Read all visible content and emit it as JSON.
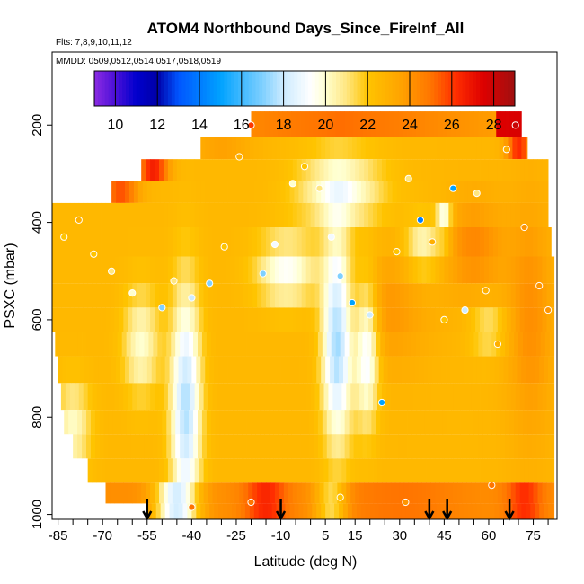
{
  "chart_data": {
    "type": "heatmap",
    "title": "ATOM4 Northbound Days_Since_FireInf_All",
    "flights_note": "Flts: 7,8,9,10,11,12",
    "dates_note": "MMDD: 0509,0512,0514,0517,0518,0519",
    "xlabel": "Latitude (deg N)",
    "ylabel": "PSXC (mbar)",
    "xlim": [
      -87,
      83
    ],
    "ylim": [
      1010,
      50
    ],
    "y_reversed": true,
    "x_ticks": [
      -85,
      -70,
      -55,
      -40,
      -25,
      -10,
      5,
      15,
      30,
      45,
      60,
      75
    ],
    "x_tick_labels": [
      "-85",
      "-70",
      "-55",
      "-40",
      "-25",
      "-10",
      "5",
      "15",
      "30",
      "45",
      "60",
      "75"
    ],
    "y_ticks": [
      200,
      400,
      600,
      800,
      1000
    ],
    "y_tick_labels": [
      "200",
      "400",
      "600",
      "800",
      "1000"
    ],
    "colorbar": {
      "min": 9,
      "max": 29,
      "ticks": [
        10,
        12,
        14,
        16,
        18,
        20,
        22,
        24,
        26,
        28
      ],
      "tick_labels": [
        "10",
        "12",
        "14",
        "16",
        "18",
        "20",
        "22",
        "24",
        "26",
        "28"
      ]
    },
    "colormap_stops": [
      [
        9,
        "#8a2be2"
      ],
      [
        10,
        "#4b10d8"
      ],
      [
        11,
        "#0000cd"
      ],
      [
        12,
        "#0000a8"
      ],
      [
        13,
        "#0055ff"
      ],
      [
        15,
        "#00a2ff"
      ],
      [
        17,
        "#7fd0ff"
      ],
      [
        18,
        "#cdebff"
      ],
      [
        19.3,
        "#ffffff"
      ],
      [
        20,
        "#ffffd0"
      ],
      [
        21,
        "#ffe680"
      ],
      [
        22,
        "#ffc400"
      ],
      [
        23.5,
        "#ffa500"
      ],
      [
        25,
        "#ff7500"
      ],
      [
        26.2,
        "#ff2d00"
      ],
      [
        27.5,
        "#dd0000"
      ],
      [
        29,
        "#a01010"
      ]
    ],
    "row_extents": [
      {
        "p": 200,
        "lat_min": -20,
        "lat_max": 71
      },
      {
        "p": 250,
        "lat_min": -37,
        "lat_max": 73
      },
      {
        "p": 290,
        "lat_min": -57,
        "lat_max": 80
      },
      {
        "p": 340,
        "lat_min": -67,
        "lat_max": 80
      },
      {
        "p": 380,
        "lat_min": -87,
        "lat_max": 80
      },
      {
        "p": 440,
        "lat_min": -87,
        "lat_max": 81
      },
      {
        "p": 500,
        "lat_min": -87,
        "lat_max": 82
      },
      {
        "p": 550,
        "lat_min": -87,
        "lat_max": 82
      },
      {
        "p": 600,
        "lat_min": -87,
        "lat_max": 82
      },
      {
        "p": 650,
        "lat_min": -86,
        "lat_max": 82
      },
      {
        "p": 700,
        "lat_min": -85,
        "lat_max": 82
      },
      {
        "p": 760,
        "lat_min": -84,
        "lat_max": 82
      },
      {
        "p": 810,
        "lat_min": -83,
        "lat_max": 82
      },
      {
        "p": 860,
        "lat_min": -80,
        "lat_max": 82
      },
      {
        "p": 910,
        "lat_min": -75,
        "lat_max": 82
      },
      {
        "p": 960,
        "lat_min": -69,
        "lat_max": 82
      },
      {
        "p": 995,
        "lat_min": -55,
        "lat_max": 82
      }
    ],
    "profile_arrows_lat": [
      -55,
      -10,
      40,
      46,
      67
    ],
    "sample_points": [
      {
        "lat": -83,
        "p": 430,
        "v": 22
      },
      {
        "lat": -78,
        "p": 395,
        "v": 23
      },
      {
        "lat": -73,
        "p": 465,
        "v": 22
      },
      {
        "lat": -67,
        "p": 500,
        "v": 21
      },
      {
        "lat": -60,
        "p": 545,
        "v": 20
      },
      {
        "lat": -50,
        "p": 575,
        "v": 17
      },
      {
        "lat": -46,
        "p": 520,
        "v": 21
      },
      {
        "lat": -40,
        "p": 555,
        "v": 18
      },
      {
        "lat": -34,
        "p": 525,
        "v": 17
      },
      {
        "lat": -29,
        "p": 450,
        "v": 22
      },
      {
        "lat": -24,
        "p": 265,
        "v": 23
      },
      {
        "lat": -20,
        "p": 200,
        "v": 26
      },
      {
        "lat": -16,
        "p": 505,
        "v": 17
      },
      {
        "lat": -12,
        "p": 445,
        "v": 19
      },
      {
        "lat": -6,
        "p": 320,
        "v": 20
      },
      {
        "lat": -2,
        "p": 285,
        "v": 22
      },
      {
        "lat": 3,
        "p": 330,
        "v": 21
      },
      {
        "lat": 7,
        "p": 430,
        "v": 19
      },
      {
        "lat": 10,
        "p": 510,
        "v": 17
      },
      {
        "lat": 14,
        "p": 565,
        "v": 15
      },
      {
        "lat": 20,
        "p": 590,
        "v": 18
      },
      {
        "lat": 24,
        "p": 770,
        "v": 15
      },
      {
        "lat": 29,
        "p": 460,
        "v": 22
      },
      {
        "lat": 33,
        "p": 310,
        "v": 21
      },
      {
        "lat": 37,
        "p": 395,
        "v": 14
      },
      {
        "lat": 41,
        "p": 440,
        "v": 23
      },
      {
        "lat": 45,
        "p": 600,
        "v": 22
      },
      {
        "lat": 48,
        "p": 330,
        "v": 15
      },
      {
        "lat": 52,
        "p": 580,
        "v": 18
      },
      {
        "lat": 56,
        "p": 340,
        "v": 21
      },
      {
        "lat": 59,
        "p": 540,
        "v": 23
      },
      {
        "lat": 63,
        "p": 650,
        "v": 23
      },
      {
        "lat": 66,
        "p": 250,
        "v": 23
      },
      {
        "lat": 69,
        "p": 200,
        "v": 28
      },
      {
        "lat": 72,
        "p": 410,
        "v": 24
      },
      {
        "lat": 77,
        "p": 530,
        "v": 24
      },
      {
        "lat": 80,
        "p": 580,
        "v": 24
      },
      {
        "lat": -40,
        "p": 985,
        "v": 25
      },
      {
        "lat": -20,
        "p": 975,
        "v": 25
      },
      {
        "lat": 10,
        "p": 965,
        "v": 22
      },
      {
        "lat": 32,
        "p": 975,
        "v": 24
      },
      {
        "lat": 61,
        "p": 940,
        "v": 25
      }
    ]
  }
}
